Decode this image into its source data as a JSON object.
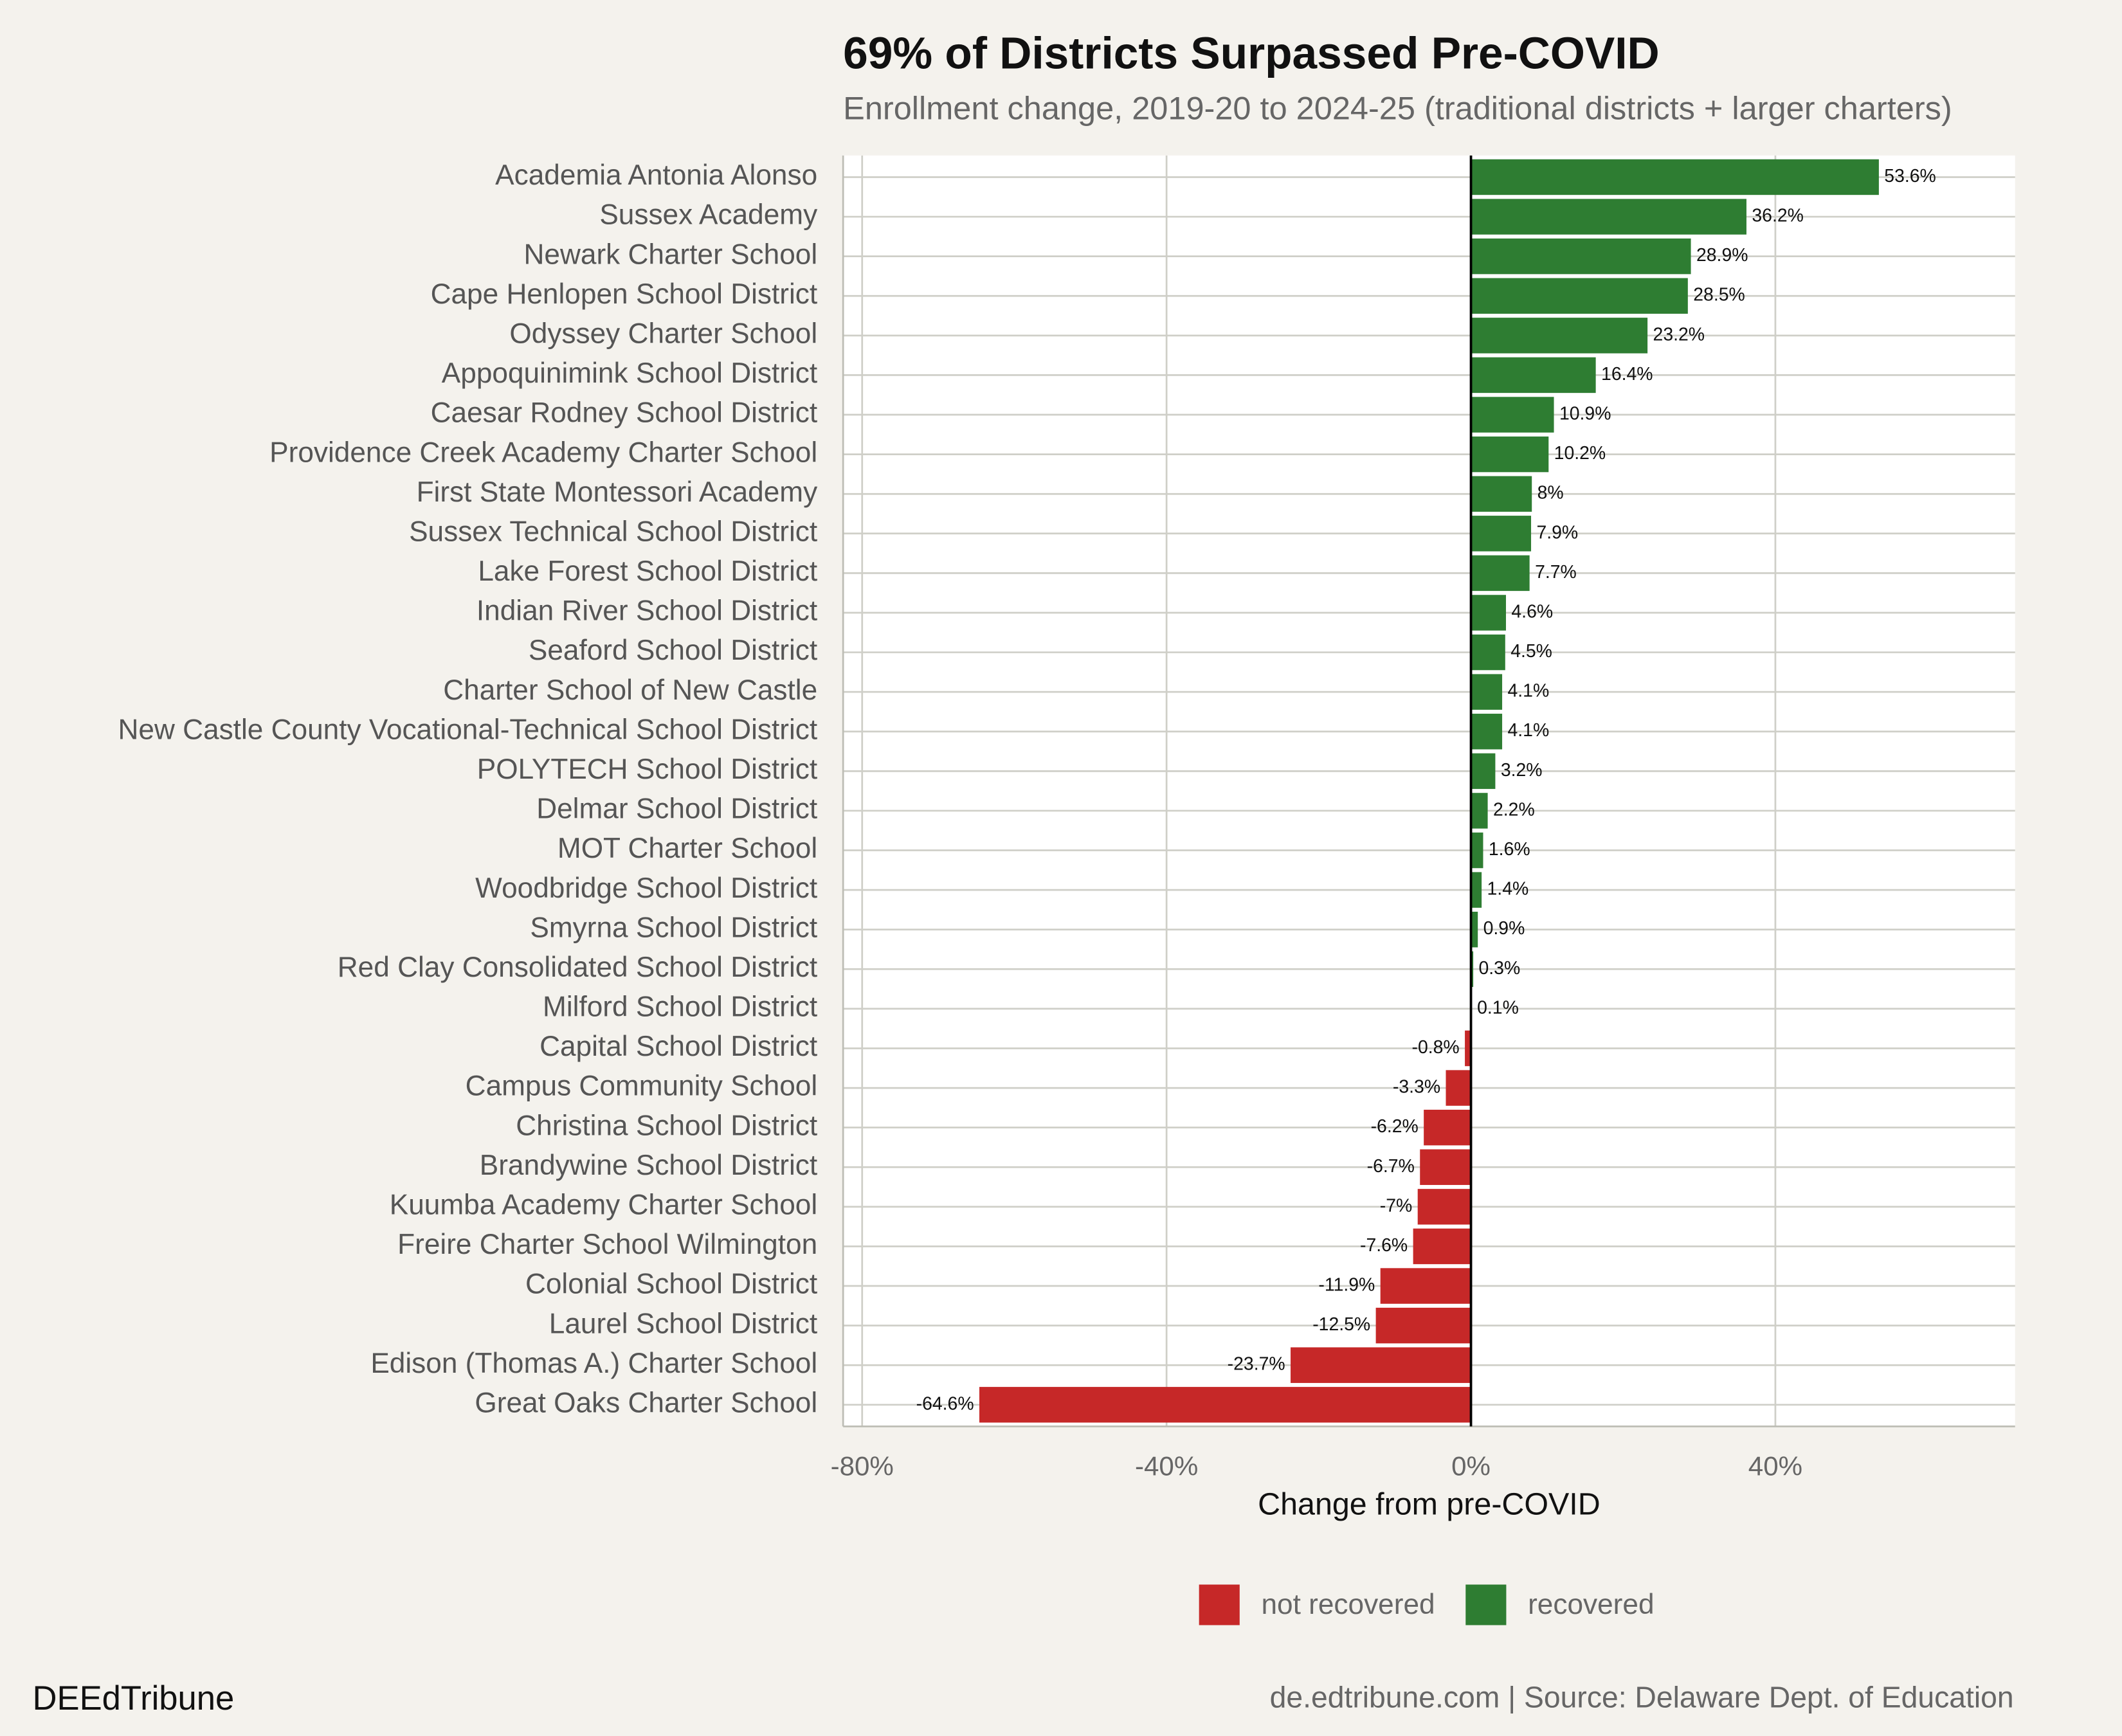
{
  "chart_data": {
    "type": "bar",
    "orientation": "horizontal",
    "title": "69% of Districts Surpassed Pre-COVID",
    "subtitle": "Enrollment change, 2019-20 to 2024-25 (traditional districts + larger charters)",
    "x_label": "Change from pre-COVID",
    "categories": [
      "Academia Antonia Alonso",
      "Sussex Academy",
      "Newark Charter School",
      "Cape Henlopen School District",
      "Odyssey Charter School",
      "Appoquinimink School District",
      "Caesar Rodney School District",
      "Providence Creek Academy Charter School",
      "First State Montessori Academy",
      "Sussex Technical School District",
      "Lake Forest School District",
      "Indian River School District",
      "Seaford School District",
      "Charter School of New Castle",
      "New Castle County Vocational-Technical School District",
      "POLYTECH School District",
      "Delmar School District",
      "MOT Charter School",
      "Woodbridge School District",
      "Smyrna School District",
      "Red Clay Consolidated School District",
      "Milford School District",
      "Capital School District",
      "Campus Community School",
      "Christina School District",
      "Brandywine School District",
      "Kuumba Academy Charter School",
      "Freire Charter School Wilmington",
      "Colonial School District",
      "Laurel School District",
      "Edison (Thomas A.) Charter School",
      "Great Oaks Charter School"
    ],
    "series": [
      {
        "name": "not recovered",
        "color": "#c62828",
        "values": [
          null,
          null,
          null,
          null,
          null,
          null,
          null,
          null,
          null,
          null,
          null,
          null,
          null,
          null,
          null,
          null,
          null,
          null,
          null,
          null,
          null,
          null,
          -0.8,
          -3.3,
          -6.2,
          -6.7,
          -7,
          -7.6,
          -11.9,
          -12.5,
          -23.7,
          -64.6
        ],
        "value_labels": [
          null,
          null,
          null,
          null,
          null,
          null,
          null,
          null,
          null,
          null,
          null,
          null,
          null,
          null,
          null,
          null,
          null,
          null,
          null,
          null,
          null,
          null,
          "-0.8%",
          "-3.3%",
          "-6.2%",
          "-6.7%",
          "-7%",
          "-7.6%",
          "-11.9%",
          "-12.5%",
          "-23.7%",
          "-64.6%"
        ]
      },
      {
        "name": "recovered",
        "color": "#2e7d32",
        "values": [
          53.6,
          36.2,
          28.9,
          28.5,
          23.2,
          16.4,
          10.9,
          10.2,
          8,
          7.9,
          7.7,
          4.6,
          4.5,
          4.1,
          4.1,
          3.2,
          2.2,
          1.6,
          1.4,
          0.9,
          0.3,
          0.1,
          null,
          null,
          null,
          null,
          null,
          null,
          null,
          null,
          null,
          null
        ],
        "value_labels": [
          "53.6%",
          "36.2%",
          "28.9%",
          "28.5%",
          "23.2%",
          "16.4%",
          "10.9%",
          "10.2%",
          "8%",
          "7.9%",
          "7.7%",
          "4.6%",
          "4.5%",
          "4.1%",
          "4.1%",
          "3.2%",
          "2.2%",
          "1.6%",
          "1.4%",
          "0.9%",
          "0.3%",
          "0.1%",
          null,
          null,
          null,
          null,
          null,
          null,
          null,
          null,
          null,
          null
        ]
      }
    ],
    "xlim": [
      -82.5,
      71.5
    ],
    "xticks": [
      {
        "value": -80,
        "label": "-80%"
      },
      {
        "value": -40,
        "label": "-40%"
      },
      {
        "value": 0,
        "label": "0%"
      },
      {
        "value": 40,
        "label": "40%"
      }
    ],
    "grid": true,
    "legend": "bottom",
    "footer_left": "DEEdTribune",
    "footer_right": "de.edtribune.com | Source: Delaware Dept. of Education"
  }
}
